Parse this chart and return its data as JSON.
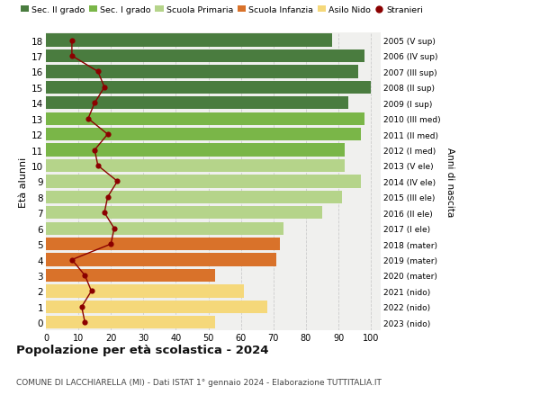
{
  "ages": [
    18,
    17,
    16,
    15,
    14,
    13,
    12,
    11,
    10,
    9,
    8,
    7,
    6,
    5,
    4,
    3,
    2,
    1,
    0
  ],
  "years": [
    "2005 (V sup)",
    "2006 (IV sup)",
    "2007 (III sup)",
    "2008 (II sup)",
    "2009 (I sup)",
    "2010 (III med)",
    "2011 (II med)",
    "2012 (I med)",
    "2013 (V ele)",
    "2014 (IV ele)",
    "2015 (III ele)",
    "2016 (II ele)",
    "2017 (I ele)",
    "2018 (mater)",
    "2019 (mater)",
    "2020 (mater)",
    "2021 (nido)",
    "2022 (nido)",
    "2023 (nido)"
  ],
  "bar_values": [
    88,
    98,
    96,
    100,
    93,
    98,
    97,
    92,
    92,
    97,
    91,
    85,
    73,
    72,
    71,
    52,
    61,
    68,
    52
  ],
  "bar_colors": [
    "#4a7c3f",
    "#4a7c3f",
    "#4a7c3f",
    "#4a7c3f",
    "#4a7c3f",
    "#7ab648",
    "#7ab648",
    "#7ab648",
    "#b5d48a",
    "#b5d48a",
    "#b5d48a",
    "#b5d48a",
    "#b5d48a",
    "#d9722a",
    "#d9722a",
    "#d9722a",
    "#f5d87a",
    "#f5d87a",
    "#f5d87a"
  ],
  "stranieri_values": [
    8,
    8,
    16,
    18,
    15,
    13,
    19,
    15,
    16,
    22,
    19,
    18,
    21,
    20,
    8,
    12,
    14,
    11,
    12
  ],
  "stranieri_color": "#8b0000",
  "legend_labels": [
    "Sec. II grado",
    "Sec. I grado",
    "Scuola Primaria",
    "Scuola Infanzia",
    "Asilo Nido",
    "Stranieri"
  ],
  "legend_colors": [
    "#4a7c3f",
    "#7ab648",
    "#b5d48a",
    "#d9722a",
    "#f5d87a"
  ],
  "title": "Popolazione per età scolastica - 2024",
  "subtitle": "COMUNE DI LACCHIARELLA (MI) - Dati ISTAT 1° gennaio 2024 - Elaborazione TUTTITALIA.IT",
  "ylabel_left": "Età alunni",
  "ylabel_right": "Anni di nascita",
  "xlim": [
    0,
    103
  ],
  "xticks": [
    0,
    10,
    20,
    30,
    40,
    50,
    60,
    70,
    80,
    90,
    100
  ],
  "bg_color": "#ffffff",
  "plot_bg_color": "#f0f0ee",
  "grid_color": "#cccccc"
}
